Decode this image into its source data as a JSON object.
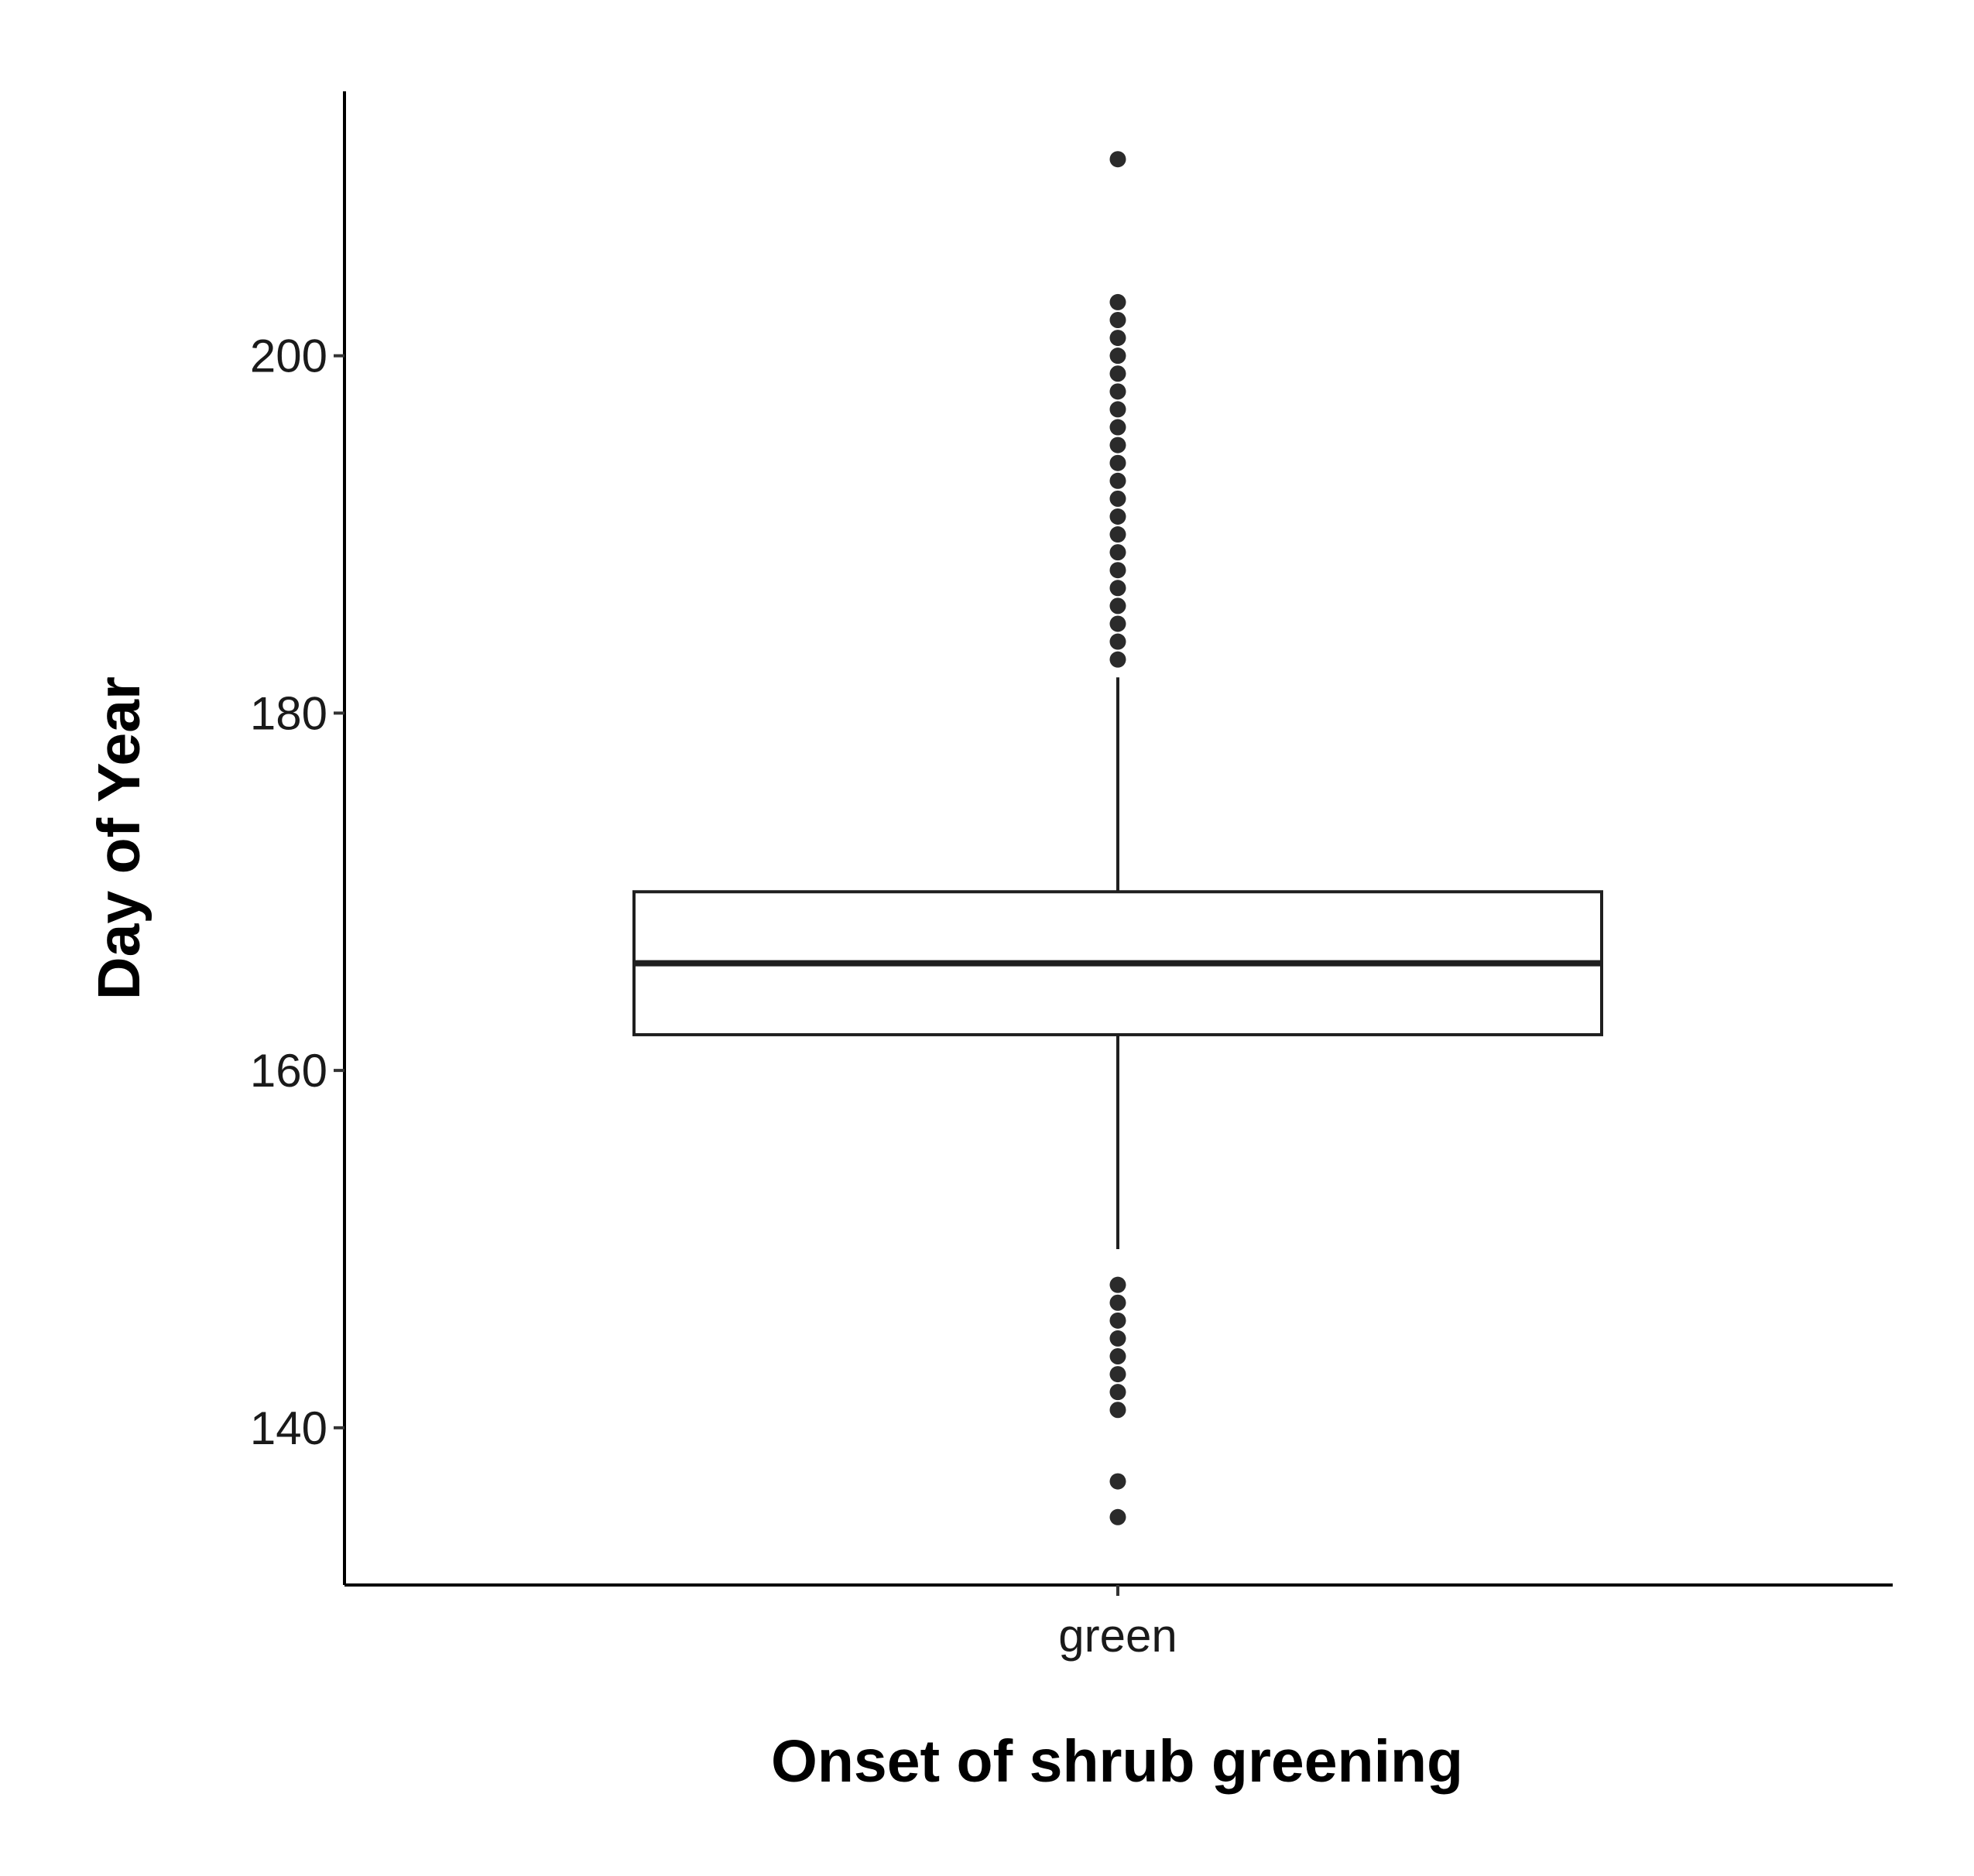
{
  "chart_data": {
    "type": "boxplot",
    "title": "",
    "xlabel": "Onset of shrub greening",
    "ylabel": "Day of Year",
    "categories": [
      "green"
    ],
    "ylim": [
      131.2,
      214.8
    ],
    "yticks": [
      140,
      160,
      180,
      200
    ],
    "grid": false,
    "legend": "none",
    "box": {
      "category": "green",
      "q1": 162,
      "median": 166,
      "q3": 170,
      "whisker_low": 150,
      "whisker_high": 182
    },
    "outliers": [
      211,
      203,
      202,
      201,
      200,
      199,
      198,
      197,
      196,
      195,
      194,
      193,
      192,
      191,
      190,
      189,
      188,
      187,
      186,
      185,
      184,
      183,
      148,
      147,
      146,
      145,
      144,
      143,
      142,
      141,
      137,
      135
    ],
    "colors": {
      "box_stroke": "#1f1f1f",
      "points": "#2b2b2b",
      "axis": "#000000"
    }
  }
}
